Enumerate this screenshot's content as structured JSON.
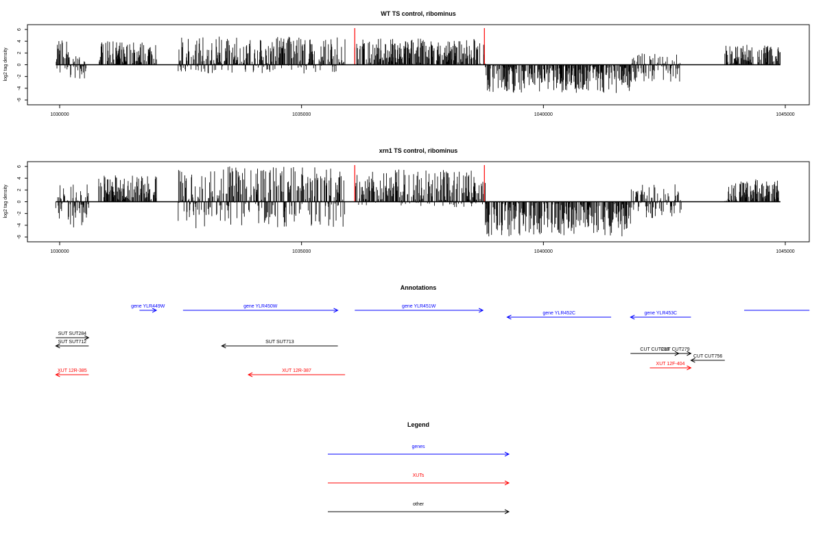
{
  "chart_data": [
    {
      "type": "bar",
      "title": "WT TS control, ribominus",
      "ylabel": "log2 tag density",
      "xlabel": "",
      "xlim": [
        1030000,
        1045000
      ],
      "ylim": [
        -6,
        6
      ],
      "x_ticks": [
        "1030000",
        "1035000",
        "1040000",
        "1045000"
      ],
      "y_ticks": [
        "6",
        "4",
        "2",
        "0",
        "-2",
        "-4",
        "-6"
      ],
      "marker_color": "#ff0000",
      "bar_color": "#000000",
      "markers_x": [
        1036100,
        1038780
      ],
      "regions": [
        {
          "from": 1029920,
          "to": 1030220,
          "min": -1.5,
          "max": 4.5
        },
        {
          "from": 1030200,
          "to": 1030550,
          "min": -2.5,
          "max": 1.5
        },
        {
          "from": 1030800,
          "to": 1032000,
          "min": 0,
          "max": 4.0
        },
        {
          "from": 1032450,
          "to": 1035900,
          "min": -1.5,
          "max": 4.8
        },
        {
          "from": 1036100,
          "to": 1038800,
          "min": 0,
          "max": 4.5
        },
        {
          "from": 1038800,
          "to": 1041800,
          "min": -4.8,
          "max": 0
        },
        {
          "from": 1041800,
          "to": 1042850,
          "min": -3.0,
          "max": 2.0
        },
        {
          "from": 1043750,
          "to": 1044900,
          "min": 0,
          "max": 3.5
        }
      ]
    },
    {
      "type": "bar",
      "title": "xrn1 TS control, ribominus",
      "ylabel": "log2 tag density",
      "xlabel": "",
      "xlim": [
        1030000,
        1045000
      ],
      "ylim": [
        -6,
        6
      ],
      "x_ticks": [
        "1030000",
        "1035000",
        "1040000",
        "1045000"
      ],
      "y_ticks": [
        "6",
        "4",
        "2",
        "0",
        "-2",
        "-4",
        "-6"
      ],
      "marker_color": "#ff0000",
      "bar_color": "#000000",
      "markers_x": [
        1036100,
        1038780
      ],
      "regions": [
        {
          "from": 1029920,
          "to": 1030600,
          "min": -4.5,
          "max": 3.5
        },
        {
          "from": 1030800,
          "to": 1032000,
          "min": 0,
          "max": 4.5
        },
        {
          "from": 1032450,
          "to": 1035900,
          "min": -4.5,
          "max": 6.0
        },
        {
          "from": 1036100,
          "to": 1038800,
          "min": -1.0,
          "max": 5.5
        },
        {
          "from": 1038800,
          "to": 1041800,
          "min": -6.0,
          "max": 0
        },
        {
          "from": 1041800,
          "to": 1042850,
          "min": -3.0,
          "max": 3.0
        },
        {
          "from": 1043750,
          "to": 1044900,
          "min": 0,
          "max": 4.0
        }
      ]
    }
  ],
  "annotations": {
    "title": "Annotations",
    "features": [
      {
        "label": "gene YLR449W",
        "type": "genes",
        "strand": "+",
        "start": 1031650,
        "end": 1032000
      },
      {
        "label": "gene YLR450W",
        "type": "genes",
        "strand": "+",
        "start": 1032550,
        "end": 1035750
      },
      {
        "label": "gene YLR451W",
        "type": "genes",
        "strand": "+",
        "start": 1036100,
        "end": 1038750
      },
      {
        "label": "gene YLR452C",
        "type": "genes",
        "strand": "-",
        "start": 1039250,
        "end": 1041400
      },
      {
        "label": "gene YLR453C",
        "type": "genes",
        "strand": "-",
        "start": 1041800,
        "end": 1043050
      },
      {
        "label": "",
        "type": "genes",
        "strand": "+",
        "start": 1044150,
        "end": 1045500
      },
      {
        "label": "SUT SUT284",
        "type": "other",
        "strand": "+",
        "start": 1029920,
        "end": 1030600
      },
      {
        "label": "SUT SUT712",
        "type": "other",
        "strand": "-",
        "start": 1029920,
        "end": 1030600
      },
      {
        "label": "SUT SUT713",
        "type": "other",
        "strand": "-",
        "start": 1033350,
        "end": 1035750
      },
      {
        "label": "CUT CUT239",
        "type": "other",
        "strand": "+",
        "start": 1041800,
        "end": 1042800
      },
      {
        "label": "CUT CUT279",
        "type": "other",
        "strand": "+",
        "start": 1042400,
        "end": 1043050
      },
      {
        "label": "CUT CUT756",
        "type": "other",
        "strand": "-",
        "start": 1043050,
        "end": 1043750
      },
      {
        "label": "XUT 12R-385",
        "type": "XUTs",
        "strand": "-",
        "start": 1029920,
        "end": 1030600
      },
      {
        "label": "XUT 12R-387",
        "type": "XUTs",
        "strand": "-",
        "start": 1033900,
        "end": 1035900
      },
      {
        "label": "XUT 12F-404",
        "type": "XUTs",
        "strand": "+",
        "start": 1042200,
        "end": 1043050
      }
    ]
  },
  "legend": {
    "title": "Legend",
    "items": [
      {
        "label": "genes",
        "color": "#0000ff"
      },
      {
        "label": "XUTs",
        "color": "#ff0000"
      },
      {
        "label": "other",
        "color": "#000000"
      }
    ]
  },
  "colors": {
    "genes": "#0000ff",
    "XUTs": "#ff0000",
    "other": "#000000"
  }
}
